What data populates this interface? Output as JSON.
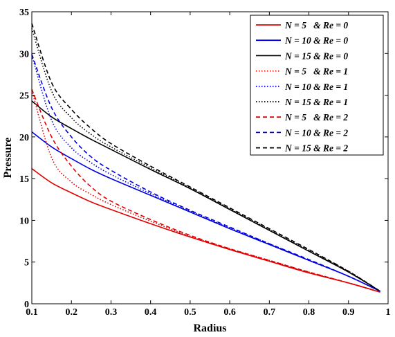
{
  "chart_data": {
    "type": "line",
    "xlabel": "Radius",
    "ylabel": "Pressure",
    "xlim": [
      0.1,
      1.0
    ],
    "ylim": [
      0,
      35
    ],
    "xticks": [
      "0.1",
      "0.2",
      "0.3",
      "0.4",
      "0.5",
      "0.6",
      "0.7",
      "0.8",
      "0.9",
      "1"
    ],
    "yticks": [
      "0",
      "5",
      "10",
      "15",
      "20",
      "25",
      "30",
      "35"
    ],
    "legend_position": "top-right",
    "grid": false,
    "x": [
      0.1,
      0.15,
      0.2,
      0.25,
      0.3,
      0.4,
      0.5,
      0.6,
      0.7,
      0.8,
      0.9,
      0.98
    ],
    "series": [
      {
        "name": "N = 5   & Re = 0",
        "color": "#e00000",
        "style": "solid",
        "values": [
          16.2,
          14.5,
          13.3,
          12.2,
          11.3,
          9.6,
          8.0,
          6.5,
          5.1,
          3.7,
          2.5,
          1.4
        ]
      },
      {
        "name": "N = 10 & Re = 0",
        "color": "#0000dd",
        "style": "solid",
        "values": [
          20.6,
          18.8,
          17.4,
          16.1,
          15.0,
          13.0,
          11.0,
          9.0,
          7.1,
          5.2,
          3.3,
          1.5
        ]
      },
      {
        "name": "N = 15 & Re = 0",
        "color": "#000000",
        "style": "solid",
        "values": [
          24.3,
          22.4,
          21.0,
          19.7,
          18.5,
          16.1,
          13.8,
          11.3,
          8.8,
          6.3,
          3.8,
          1.5
        ]
      },
      {
        "name": "N = 5   & Re = 1",
        "color": "#e00000",
        "style": "dotted",
        "values": [
          25.6,
          17.5,
          14.6,
          13.1,
          11.9,
          9.9,
          8.1,
          6.6,
          5.2,
          3.8,
          2.5,
          1.4
        ]
      },
      {
        "name": "N = 10 & Re = 1",
        "color": "#0000dd",
        "style": "dotted",
        "values": [
          29.8,
          22.0,
          18.7,
          16.9,
          15.5,
          13.2,
          11.1,
          9.1,
          7.2,
          5.2,
          3.3,
          1.5
        ]
      },
      {
        "name": "N = 15 & Re = 1",
        "color": "#000000",
        "style": "dotted",
        "values": [
          33.0,
          25.5,
          22.3,
          20.3,
          18.8,
          16.3,
          13.9,
          11.4,
          8.9,
          6.4,
          3.9,
          1.5
        ]
      },
      {
        "name": "N = 5   & Re = 2",
        "color": "#e00000",
        "style": "dashed",
        "values": [
          25.7,
          20.0,
          16.5,
          14.0,
          12.3,
          10.1,
          8.2,
          6.6,
          5.2,
          3.8,
          2.5,
          1.4
        ]
      },
      {
        "name": "N = 10 & Re = 2",
        "color": "#0000dd",
        "style": "dashed",
        "values": [
          29.9,
          23.5,
          20.0,
          17.6,
          16.0,
          13.4,
          11.2,
          9.2,
          7.2,
          5.3,
          3.3,
          1.5
        ]
      },
      {
        "name": "N = 15 & Re = 2",
        "color": "#000000",
        "style": "dashed",
        "values": [
          33.6,
          26.5,
          23.3,
          21.0,
          19.2,
          16.5,
          14.0,
          11.5,
          9.0,
          6.5,
          3.9,
          1.5
        ]
      }
    ]
  }
}
